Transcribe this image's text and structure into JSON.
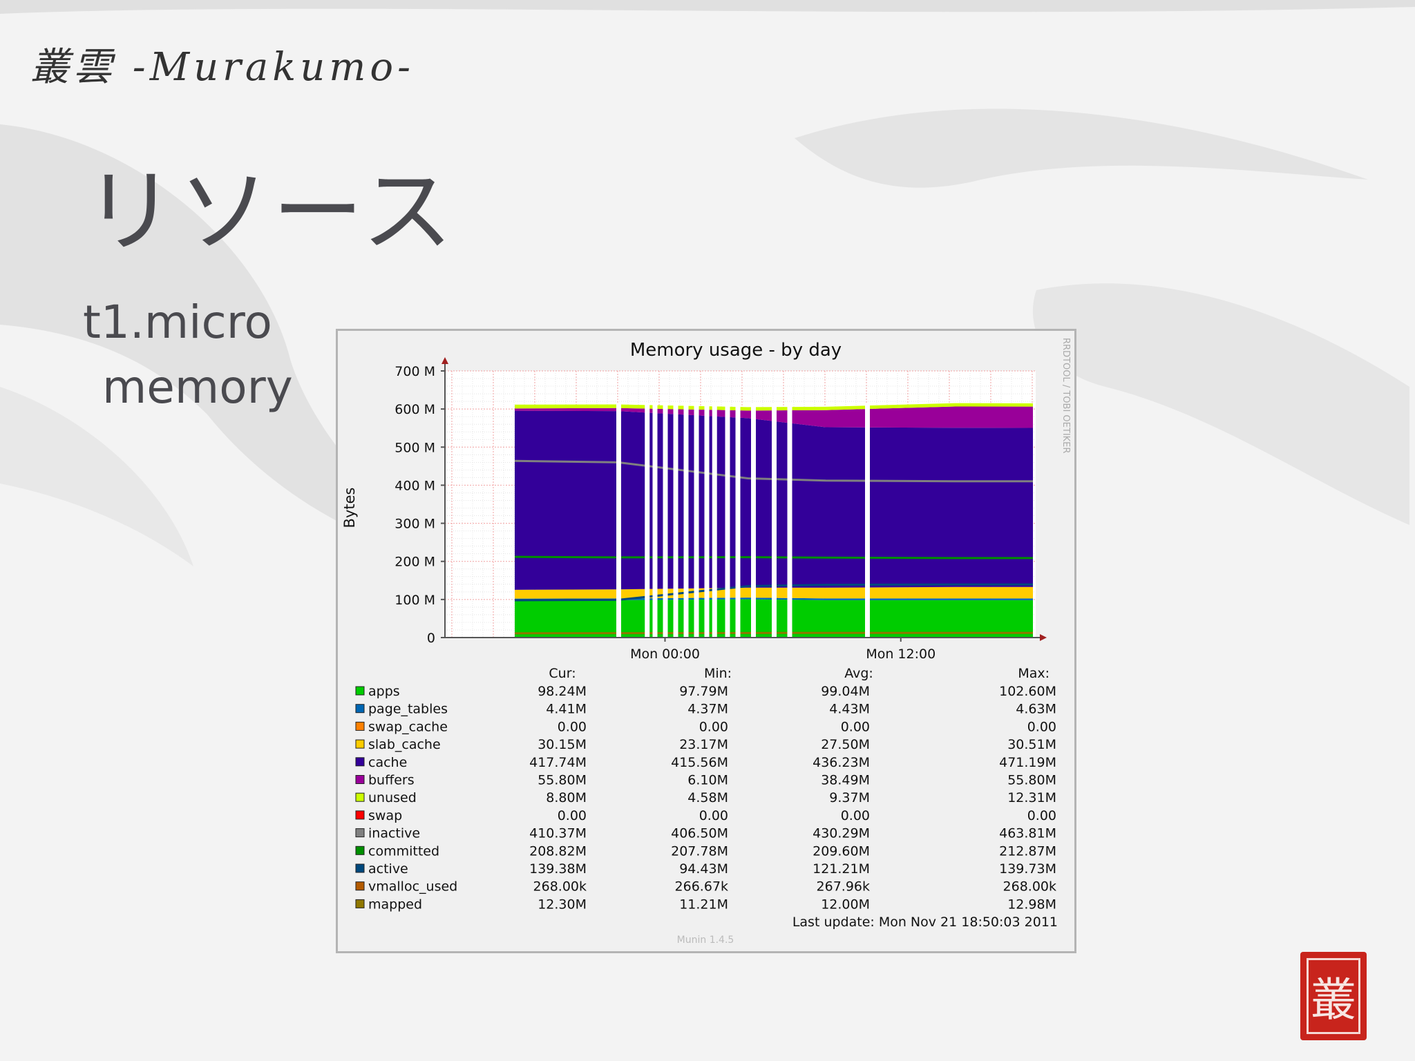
{
  "slide": {
    "logo": "叢雲 -Murakumo-",
    "title": "リソース",
    "bullet_line_1": "t1.micro",
    "bullet_line_2": "memory",
    "seal_char": "叢"
  },
  "chart_data": {
    "type": "area",
    "title": "Memory usage - by day",
    "ylabel": "Bytes",
    "xlabel": "",
    "side_label": "RRDTOOL / TOBI OETIKER",
    "ylim": [
      0,
      700
    ],
    "y_ticks": [
      {
        "value": 0,
        "label": "0"
      },
      {
        "value": 100,
        "label": "100 M"
      },
      {
        "value": 200,
        "label": "200 M"
      },
      {
        "value": 300,
        "label": "300 M"
      },
      {
        "value": 400,
        "label": "400 M"
      },
      {
        "value": 500,
        "label": "500 M"
      },
      {
        "value": 600,
        "label": "600 M"
      },
      {
        "value": 700,
        "label": "700 M"
      }
    ],
    "x_ticks": [
      "Mon 00:00",
      "Mon 12:00"
    ],
    "grid": true,
    "stack_series": [
      {
        "name": "apps",
        "color": "#00cc00",
        "values": [
          97.8,
          98.2,
          100.5,
          98.2,
          98.2,
          98.2
        ]
      },
      {
        "name": "page_tables",
        "color": "#0066b3",
        "values": [
          4.4,
          4.4,
          4.5,
          4.4,
          4.4,
          4.4
        ]
      },
      {
        "name": "slab_cache",
        "color": "#ffcc00",
        "values": [
          23.2,
          24.0,
          26.0,
          28.5,
          30.2,
          30.2
        ]
      },
      {
        "name": "cache",
        "color": "#330099",
        "values": [
          470.0,
          468.0,
          445.0,
          421.0,
          418.0,
          417.7
        ]
      },
      {
        "name": "buffers",
        "color": "#990099",
        "values": [
          6.1,
          8.0,
          20.0,
          45.0,
          55.8,
          55.8
        ]
      },
      {
        "name": "unused",
        "color": "#ccff00",
        "values": [
          10.0,
          9.4,
          9.0,
          8.8,
          8.8,
          8.8
        ]
      }
    ],
    "line_series": [
      {
        "name": "inactive",
        "color": "#808080",
        "values": [
          463.8,
          460.0,
          418.0,
          412.0,
          410.4,
          410.4
        ]
      },
      {
        "name": "committed",
        "color": "#008f00",
        "values": [
          212.0,
          210.5,
          211.0,
          210.0,
          208.8,
          208.8
        ]
      },
      {
        "name": "active",
        "color": "#00487d",
        "values": [
          98.0,
          99.0,
          135.0,
          138.5,
          139.4,
          139.4
        ]
      },
      {
        "name": "mapped",
        "color": "#8f7700",
        "values": [
          11.2,
          11.5,
          12.0,
          12.3,
          12.3,
          12.3
        ]
      }
    ],
    "x_fraction": [
      0.0,
      0.2,
      0.45,
      0.6,
      0.85,
      1.0
    ],
    "gaps": [
      0.2,
      0.255,
      0.27,
      0.29,
      0.31,
      0.33,
      0.35,
      0.37,
      0.385,
      0.41,
      0.43,
      0.46,
      0.5,
      0.53,
      0.68
    ],
    "legend_headers": [
      "Cur:",
      "Min:",
      "Avg:",
      "Max:"
    ],
    "legend": [
      {
        "name": "apps",
        "color": "#00cc00",
        "cur": "98.24M",
        "min": "97.79M",
        "avg": "99.04M",
        "max": "102.60M"
      },
      {
        "name": "page_tables",
        "color": "#0066b3",
        "cur": "4.41M",
        "min": "4.37M",
        "avg": "4.43M",
        "max": "4.63M"
      },
      {
        "name": "swap_cache",
        "color": "#ff8000",
        "cur": "0.00",
        "min": "0.00",
        "avg": "0.00",
        "max": "0.00"
      },
      {
        "name": "slab_cache",
        "color": "#ffcc00",
        "cur": "30.15M",
        "min": "23.17M",
        "avg": "27.50M",
        "max": "30.51M"
      },
      {
        "name": "cache",
        "color": "#330099",
        "cur": "417.74M",
        "min": "415.56M",
        "avg": "436.23M",
        "max": "471.19M"
      },
      {
        "name": "buffers",
        "color": "#990099",
        "cur": "55.80M",
        "min": "6.10M",
        "avg": "38.49M",
        "max": "55.80M"
      },
      {
        "name": "unused",
        "color": "#ccff00",
        "cur": "8.80M",
        "min": "4.58M",
        "avg": "9.37M",
        "max": "12.31M"
      },
      {
        "name": "swap",
        "color": "#ff0000",
        "cur": "0.00",
        "min": "0.00",
        "avg": "0.00",
        "max": "0.00"
      },
      {
        "name": "inactive",
        "color": "#808080",
        "cur": "410.37M",
        "min": "406.50M",
        "avg": "430.29M",
        "max": "463.81M"
      },
      {
        "name": "committed",
        "color": "#008f00",
        "cur": "208.82M",
        "min": "207.78M",
        "avg": "209.60M",
        "max": "212.87M"
      },
      {
        "name": "active",
        "color": "#00487d",
        "cur": "139.38M",
        "min": "94.43M",
        "avg": "121.21M",
        "max": "139.73M"
      },
      {
        "name": "vmalloc_used",
        "color": "#b35a00",
        "cur": "268.00k",
        "min": "266.67k",
        "avg": "267.96k",
        "max": "268.00k"
      },
      {
        "name": "mapped",
        "color": "#8f7700",
        "cur": "12.30M",
        "min": "11.21M",
        "avg": "12.00M",
        "max": "12.98M"
      }
    ],
    "last_update": "Last update: Mon Nov 21 18:50:03 2011",
    "footer": "Munin 1.4.5"
  }
}
